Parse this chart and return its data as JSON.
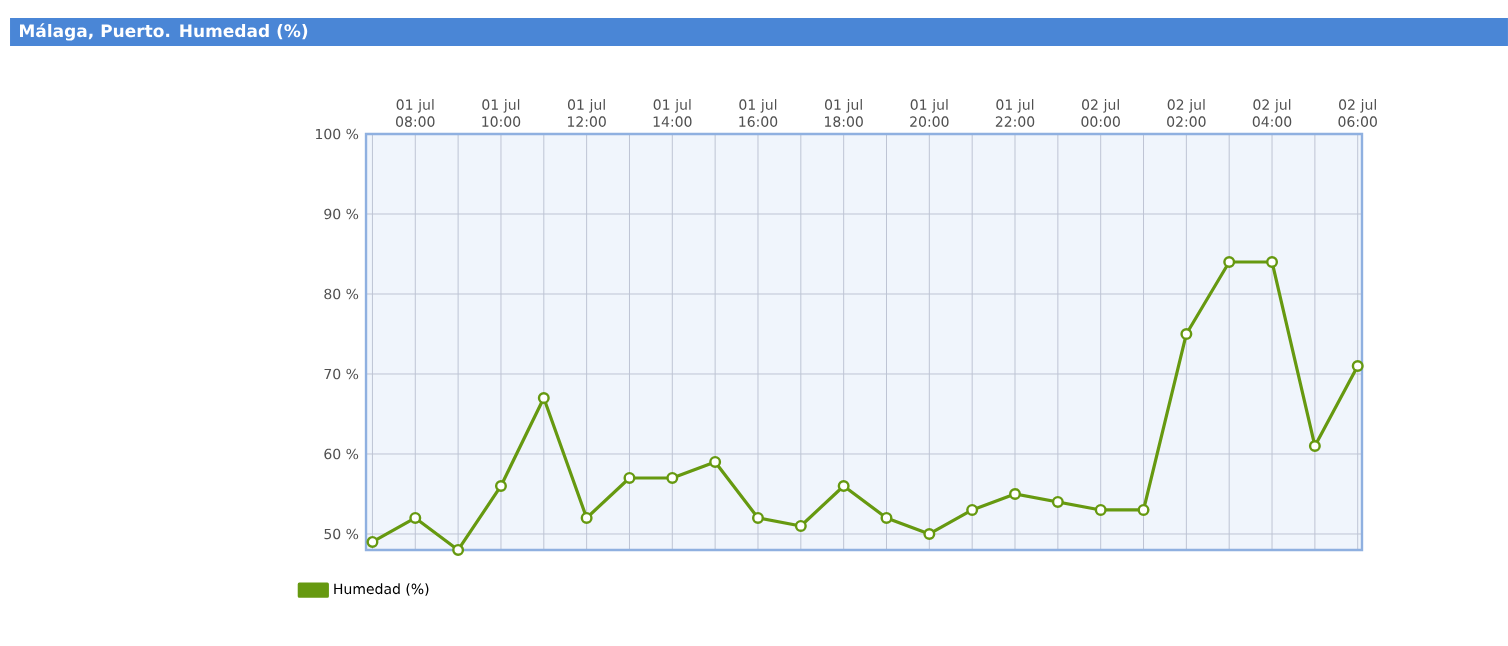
{
  "chart_data": {
    "type": "line",
    "title": "Málaga, Puerto. Humedad (%)",
    "categories": [
      null,
      "01 jul 08:00",
      null,
      "01 jul 10:00",
      null,
      "01 jul 12:00",
      null,
      "01 jul 14:00",
      null,
      "01 jul 16:00",
      null,
      "01 jul 18:00",
      null,
      "01 jul 20:00",
      null,
      "01 jul 22:00",
      null,
      "02 jul 00:00",
      null,
      "02 jul 02:00",
      null,
      "02 jul 04:00",
      null,
      "02 jul 06:00"
    ],
    "series": [
      {
        "name": "Humedad (%)",
        "color": "#669910",
        "values": [
          49,
          52,
          48,
          56,
          67,
          52,
          57,
          57,
          59,
          52,
          51,
          56,
          52,
          50,
          53,
          55,
          54,
          53,
          53,
          75,
          84,
          84,
          61,
          71
        ]
      }
    ],
    "ylim": [
      48,
      100
    ],
    "yticks": [
      {
        "value": 50,
        "label": "50 %"
      },
      {
        "value": 60,
        "label": "60 %"
      },
      {
        "value": 70,
        "label": "70 %"
      },
      {
        "value": 80,
        "label": "80 %"
      },
      {
        "value": 90,
        "label": "90 %"
      },
      {
        "value": 100,
        "label": "100 %"
      }
    ],
    "grid": true,
    "legend": "bottom left",
    "marker": "circle",
    "line_style": "solid"
  }
}
